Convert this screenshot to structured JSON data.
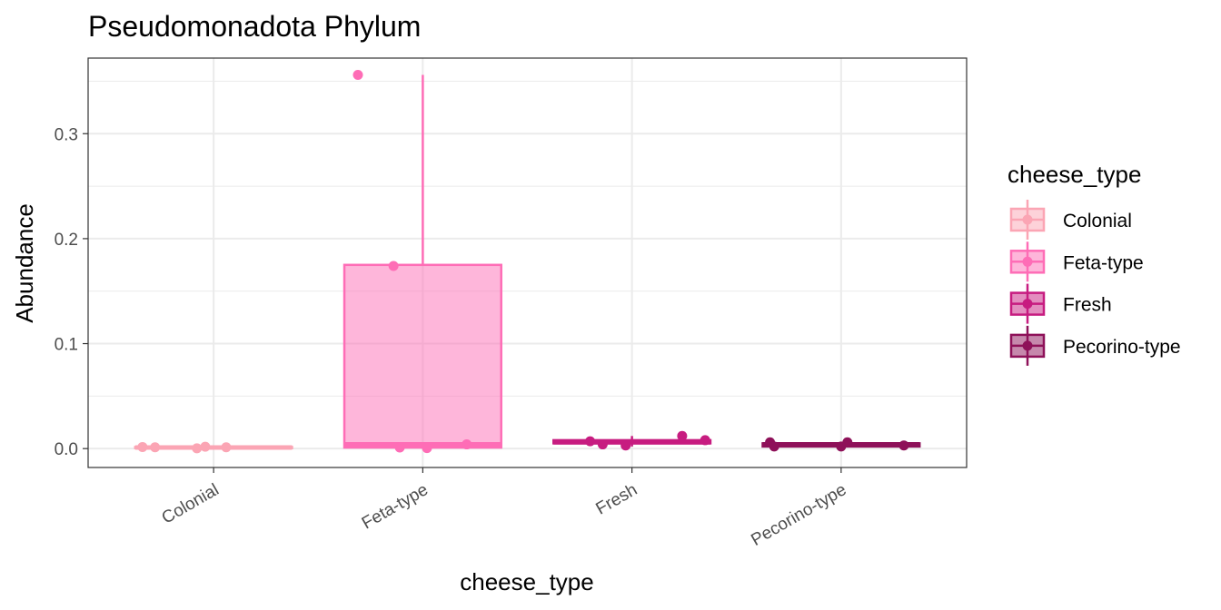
{
  "chart_data": {
    "type": "boxplot",
    "title": "Pseudomonadota Phylum",
    "xlabel": "cheese_type",
    "ylabel": "Abundance",
    "ylim": [
      -0.018,
      0.372
    ],
    "y_ticks": [
      0.0,
      0.1,
      0.2,
      0.3
    ],
    "y_tick_labels": [
      "0.0",
      "0.1",
      "0.2",
      "0.3"
    ],
    "categories": [
      "Colonial",
      "Feta-type",
      "Fresh",
      "Pecorino-type"
    ],
    "grid": true,
    "legend": {
      "title": "cheese_type",
      "position": "right"
    },
    "series": [
      {
        "name": "Colonial",
        "color": "#FBA5B4",
        "box": {
          "min": 0.0,
          "q1": 0.0005,
          "median": 0.001,
          "q3": 0.0015,
          "max": 0.002
        },
        "points": [
          {
            "jitter": -0.34,
            "y": 0.0015
          },
          {
            "jitter": -0.28,
            "y": 0.0012
          },
          {
            "jitter": -0.08,
            "y": 0.0003
          },
          {
            "jitter": -0.04,
            "y": 0.0018
          },
          {
            "jitter": 0.06,
            "y": 0.0012
          }
        ]
      },
      {
        "name": "Feta-type",
        "color": "#FE6DB6",
        "box": {
          "min": 0.0,
          "q1": 0.001,
          "median": 0.004,
          "q3": 0.175,
          "max": 0.356
        },
        "points": [
          {
            "jitter": -0.31,
            "y": 0.356
          },
          {
            "jitter": -0.14,
            "y": 0.174
          },
          {
            "jitter": -0.11,
            "y": 0.001
          },
          {
            "jitter": 0.02,
            "y": 0.0005
          },
          {
            "jitter": 0.21,
            "y": 0.004
          }
        ]
      },
      {
        "name": "Fresh",
        "color": "#C71C80",
        "box": {
          "min": 0.002,
          "q1": 0.005,
          "median": 0.006,
          "q3": 0.008,
          "max": 0.012
        },
        "points": [
          {
            "jitter": -0.2,
            "y": 0.007
          },
          {
            "jitter": -0.14,
            "y": 0.004
          },
          {
            "jitter": -0.03,
            "y": 0.003
          },
          {
            "jitter": 0.24,
            "y": 0.012
          },
          {
            "jitter": 0.35,
            "y": 0.008
          }
        ]
      },
      {
        "name": "Pecorino-type",
        "color": "#8E1159",
        "box": {
          "min": 0.001,
          "q1": 0.002,
          "median": 0.004,
          "q3": 0.005,
          "max": 0.006
        },
        "points": [
          {
            "jitter": -0.34,
            "y": 0.006
          },
          {
            "jitter": -0.32,
            "y": 0.002
          },
          {
            "jitter": 0.0,
            "y": 0.002
          },
          {
            "jitter": 0.03,
            "y": 0.006
          },
          {
            "jitter": 0.3,
            "y": 0.003
          }
        ]
      }
    ]
  }
}
